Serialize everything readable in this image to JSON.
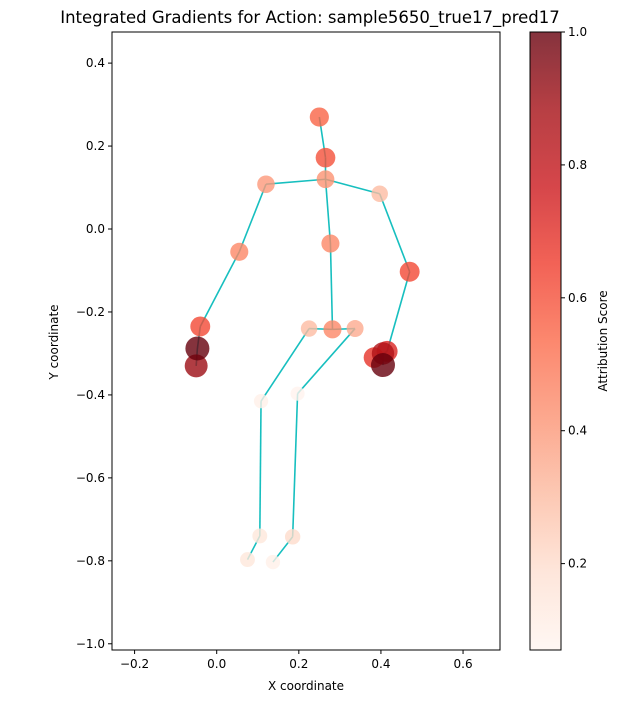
{
  "chart_data": {
    "type": "scatter",
    "title": "Integrated Gradients for Action: sample5650_true17_pred17",
    "xlabel": "X coordinate",
    "ylabel": "Y coordinate",
    "xlim": [
      -0.255,
      0.69
    ],
    "ylim": [
      -1.015,
      0.475
    ],
    "x_ticks": [
      -0.2,
      0.0,
      0.2,
      0.4,
      0.6
    ],
    "x_tick_labels": [
      "−0.2",
      "0.0",
      "0.2",
      "0.4",
      "0.6"
    ],
    "y_ticks": [
      0.4,
      0.2,
      0.0,
      -0.2,
      -0.4,
      -0.6,
      -0.8,
      -1.0
    ],
    "y_tick_labels": [
      "0.4",
      "0.2",
      "0.0",
      "−0.2",
      "−0.4",
      "−0.6",
      "−0.8",
      "−1.0"
    ],
    "grid": false,
    "colormap": "Reds",
    "line_color": "#17bfbf",
    "colorbar": {
      "label": "Attribution Score",
      "range": [
        0.07,
        1.0
      ],
      "ticks": [
        0.2,
        0.4,
        0.6,
        0.8,
        1.0
      ],
      "tick_labels": [
        "0.2",
        "0.4",
        "0.6",
        "0.8",
        "1.0"
      ]
    },
    "joints": [
      {
        "x": 0.25,
        "y": 0.27,
        "score": 0.55
      },
      {
        "x": 0.265,
        "y": 0.172,
        "score": 0.6
      },
      {
        "x": 0.265,
        "y": 0.12,
        "score": 0.42
      },
      {
        "x": 0.12,
        "y": 0.108,
        "score": 0.4
      },
      {
        "x": 0.397,
        "y": 0.085,
        "score": 0.3
      },
      {
        "x": 0.277,
        "y": -0.035,
        "score": 0.45
      },
      {
        "x": 0.055,
        "y": -0.055,
        "score": 0.45
      },
      {
        "x": 0.47,
        "y": -0.103,
        "score": 0.62
      },
      {
        "x": -0.04,
        "y": -0.235,
        "score": 0.62
      },
      {
        "x": 0.225,
        "y": -0.24,
        "score": 0.3
      },
      {
        "x": 0.282,
        "y": -0.242,
        "score": 0.45
      },
      {
        "x": 0.337,
        "y": -0.24,
        "score": 0.35
      },
      {
        "x": 0.415,
        "y": -0.295,
        "score": 0.72
      },
      {
        "x": 0.405,
        "y": -0.3,
        "score": 0.85
      },
      {
        "x": 0.383,
        "y": -0.31,
        "score": 0.68
      },
      {
        "x": -0.047,
        "y": -0.288,
        "score": 1.0
      },
      {
        "x": 0.405,
        "y": -0.328,
        "score": 1.0
      },
      {
        "x": -0.05,
        "y": -0.33,
        "score": 0.9
      },
      {
        "x": 0.108,
        "y": -0.415,
        "score": 0.1
      },
      {
        "x": 0.197,
        "y": -0.397,
        "score": 0.08
      },
      {
        "x": 0.105,
        "y": -0.74,
        "score": 0.15
      },
      {
        "x": 0.185,
        "y": -0.742,
        "score": 0.2
      },
      {
        "x": 0.075,
        "y": -0.797,
        "score": 0.15
      },
      {
        "x": 0.137,
        "y": -0.803,
        "score": 0.1
      }
    ],
    "bones": [
      [
        [
          0.25,
          0.27
        ],
        [
          0.265,
          0.172
        ]
      ],
      [
        [
          0.265,
          0.172
        ],
        [
          0.265,
          0.12
        ]
      ],
      [
        [
          0.265,
          0.12
        ],
        [
          0.12,
          0.108
        ]
      ],
      [
        [
          0.265,
          0.12
        ],
        [
          0.397,
          0.085
        ]
      ],
      [
        [
          0.265,
          0.12
        ],
        [
          0.277,
          -0.035
        ]
      ],
      [
        [
          0.277,
          -0.035
        ],
        [
          0.282,
          -0.242
        ]
      ],
      [
        [
          0.12,
          0.108
        ],
        [
          0.055,
          -0.055
        ]
      ],
      [
        [
          0.055,
          -0.055
        ],
        [
          -0.04,
          -0.235
        ]
      ],
      [
        [
          -0.04,
          -0.235
        ],
        [
          -0.047,
          -0.288
        ]
      ],
      [
        [
          -0.047,
          -0.288
        ],
        [
          -0.05,
          -0.33
        ]
      ],
      [
        [
          0.397,
          0.085
        ],
        [
          0.47,
          -0.103
        ]
      ],
      [
        [
          0.47,
          -0.103
        ],
        [
          0.415,
          -0.295
        ]
      ],
      [
        [
          0.415,
          -0.295
        ],
        [
          0.405,
          -0.3
        ]
      ],
      [
        [
          0.405,
          -0.3
        ],
        [
          0.405,
          -0.328
        ]
      ],
      [
        [
          0.225,
          -0.24
        ],
        [
          0.282,
          -0.242
        ]
      ],
      [
        [
          0.282,
          -0.242
        ],
        [
          0.337,
          -0.24
        ]
      ],
      [
        [
          0.225,
          -0.24
        ],
        [
          0.108,
          -0.415
        ]
      ],
      [
        [
          0.108,
          -0.415
        ],
        [
          0.105,
          -0.74
        ]
      ],
      [
        [
          0.105,
          -0.74
        ],
        [
          0.075,
          -0.797
        ]
      ],
      [
        [
          0.337,
          -0.24
        ],
        [
          0.197,
          -0.397
        ]
      ],
      [
        [
          0.197,
          -0.397
        ],
        [
          0.185,
          -0.742
        ]
      ],
      [
        [
          0.185,
          -0.742
        ],
        [
          0.137,
          -0.803
        ]
      ]
    ]
  }
}
